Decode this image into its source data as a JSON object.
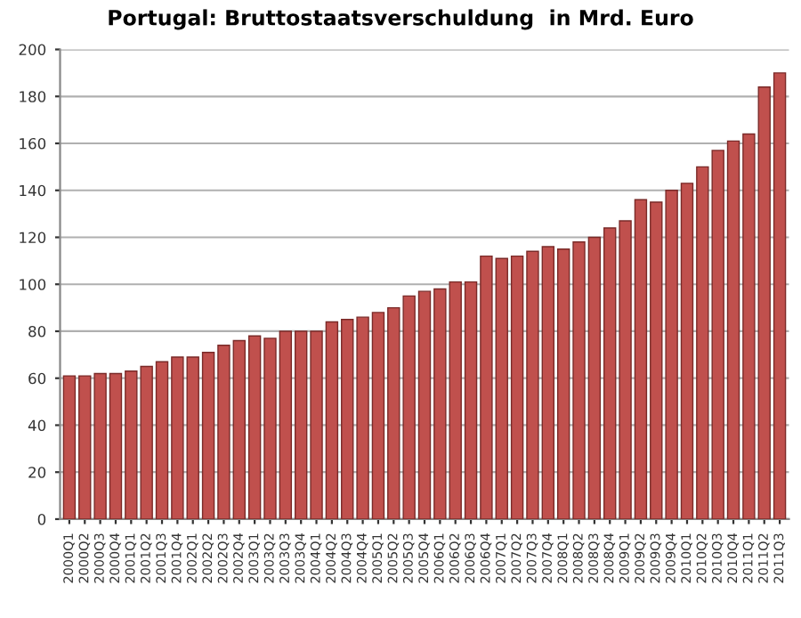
{
  "chart_data": {
    "type": "bar",
    "title": "Portugal: Bruttostaatsverschuldung  in Mrd. Euro",
    "categories": [
      "2000Q1",
      "2000Q2",
      "2000Q3",
      "2000Q4",
      "2001Q1",
      "2001Q2",
      "2001Q3",
      "2001Q4",
      "2002Q1",
      "2002Q2",
      "2002Q3",
      "2002Q4",
      "2003Q1",
      "2003Q2",
      "2003Q3",
      "2003Q4",
      "2004Q1",
      "2004Q2",
      "2004Q3",
      "2004Q4",
      "2005Q1",
      "2005Q2",
      "2005Q3",
      "2005Q4",
      "2006Q1",
      "2006Q2",
      "2006Q3",
      "2006Q4",
      "2007Q1",
      "2007Q2",
      "2007Q3",
      "2007Q4",
      "2008Q1",
      "2008Q2",
      "2008Q3",
      "2008Q4",
      "2009Q1",
      "2009Q2",
      "2009Q3",
      "2009Q4",
      "2010Q1",
      "2010Q2",
      "2010Q3",
      "2010Q4",
      "2011Q1",
      "2011Q2",
      "2011Q3"
    ],
    "values": [
      61,
      61,
      62,
      62,
      63,
      65,
      67,
      69,
      69,
      71,
      74,
      76,
      78,
      77,
      80,
      80,
      80,
      84,
      85,
      86,
      88,
      90,
      95,
      97,
      98,
      101,
      101,
      112,
      111,
      112,
      114,
      116,
      115,
      118,
      120,
      124,
      127,
      136,
      135,
      140,
      143,
      150,
      157,
      161,
      164,
      184,
      190
    ],
    "color": "#c0504d",
    "ylim": [
      0,
      200
    ],
    "yticks": [
      0,
      20,
      40,
      60,
      80,
      100,
      120,
      140,
      160,
      180,
      200
    ],
    "grid": "y"
  }
}
